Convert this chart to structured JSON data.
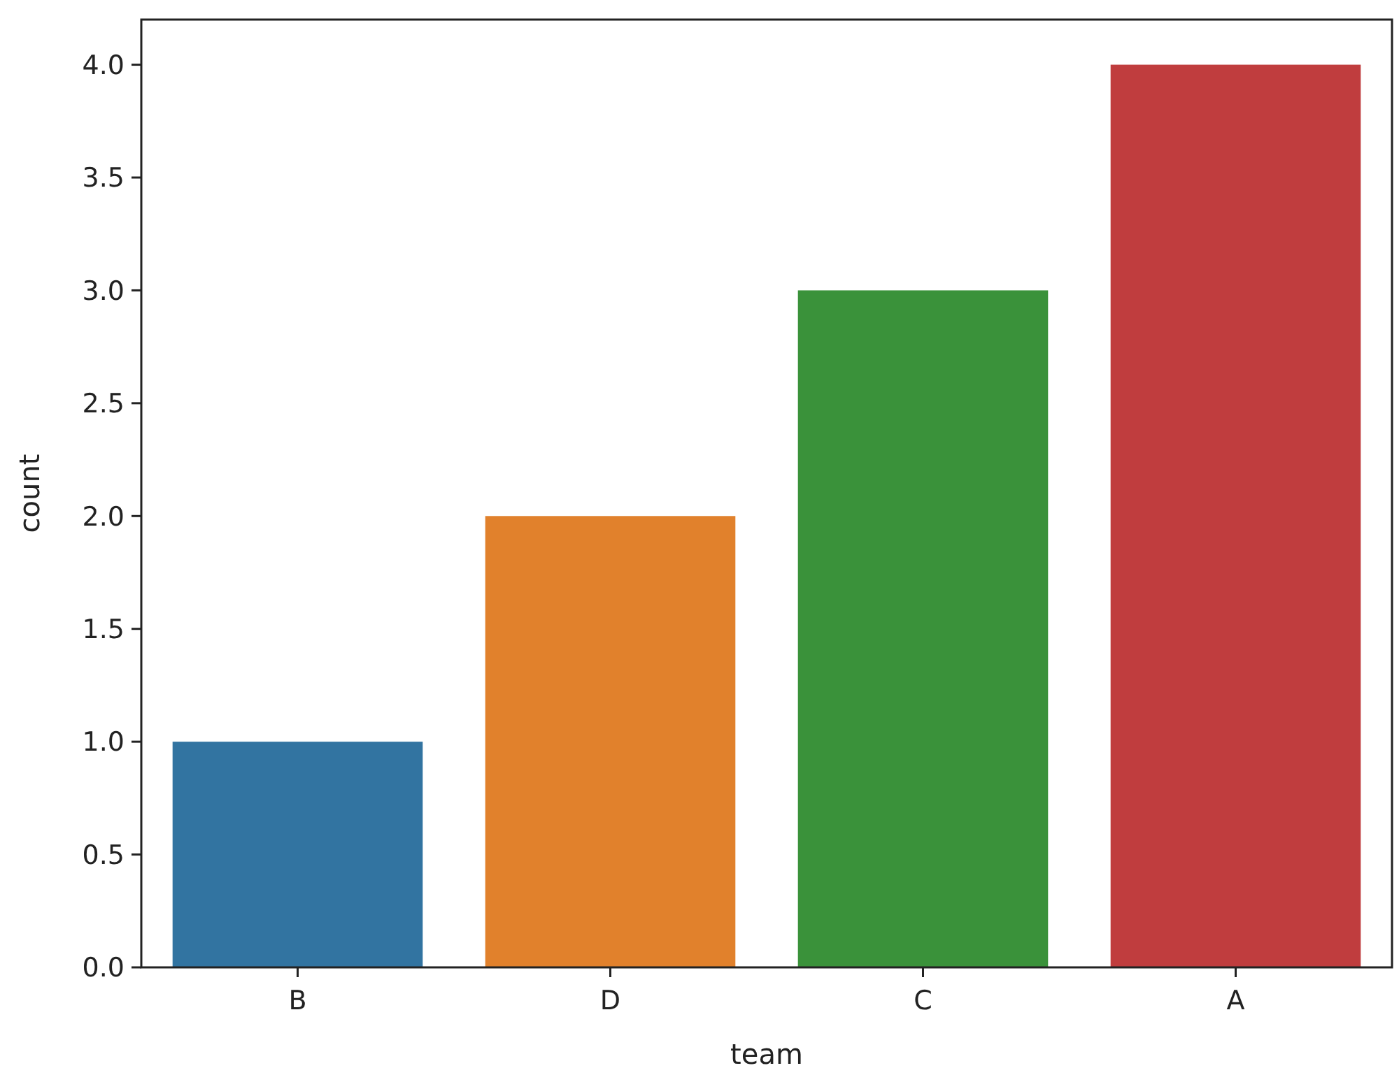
{
  "chart_data": {
    "type": "bar",
    "xlabel": "team",
    "ylabel": "count",
    "categories": [
      "B",
      "D",
      "C",
      "A"
    ],
    "values": [
      1,
      2,
      3,
      4
    ],
    "colors": [
      "#3274a1",
      "#e1812c",
      "#3a923a",
      "#c03d3e"
    ],
    "ylim": [
      0,
      4.2
    ],
    "yticks": [
      {
        "value": 0,
        "label": "0.0"
      },
      {
        "value": 0.5,
        "label": "0.5"
      },
      {
        "value": 1,
        "label": "1.0"
      },
      {
        "value": 1.5,
        "label": "1.5"
      },
      {
        "value": 2,
        "label": "2.0"
      },
      {
        "value": 2.5,
        "label": "2.5"
      },
      {
        "value": 3,
        "label": "3.0"
      },
      {
        "value": 3.5,
        "label": "3.5"
      },
      {
        "value": 4,
        "label": "4.0"
      }
    ]
  }
}
